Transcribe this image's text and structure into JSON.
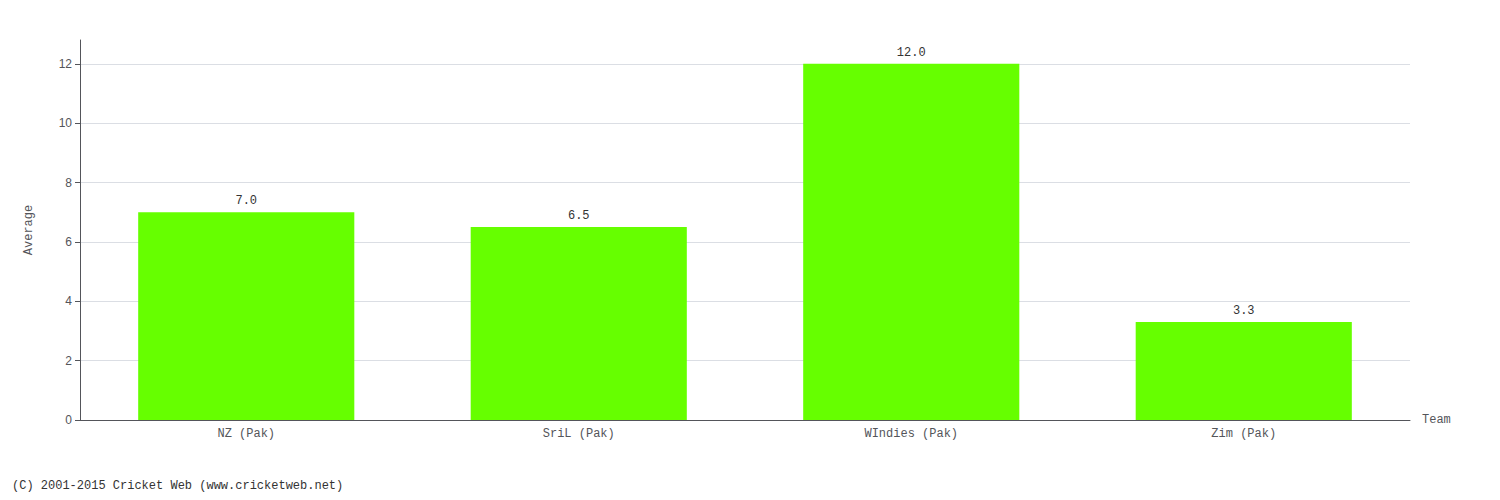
{
  "chart_data": {
    "type": "bar",
    "categories": [
      "NZ (Pak)",
      "SriL (Pak)",
      "WIndies (Pak)",
      "Zim (Pak)"
    ],
    "values": [
      7.0,
      6.5,
      12.0,
      3.3
    ],
    "value_labels": [
      "7.0",
      "6.5",
      "12.0",
      "3.3"
    ],
    "data_labels": true,
    "color": "#66ff00",
    "xlabel": "Team",
    "ylabel": "Average",
    "ylim": [
      0,
      12.8
    ],
    "yticks": [
      0,
      2,
      4,
      6,
      8,
      10,
      12
    ],
    "grid": true,
    "annotations": [
      "(C) 2001-2015 Cricket Web (www.cricketweb.net)"
    ]
  }
}
